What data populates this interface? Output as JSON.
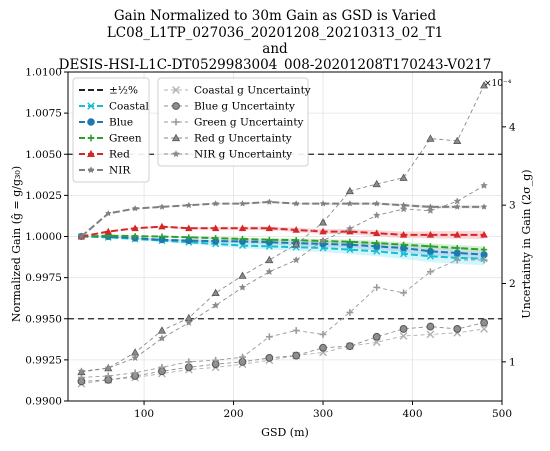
{
  "chart_data": {
    "type": "line",
    "title_lines": [
      "Gain Normalized to 30m Gain as GSD is Varied",
      "LC08_L1TP_027036_20201208_20210313_02_T1",
      "and",
      "DESIS-HSI-L1C-DT0529983004_008-20201208T170243-V0217"
    ],
    "xlabel": "GSD (m)",
    "ylabel_left": "Normalized Gain (ĝ = g/g₃₀)",
    "ylabel_right": "Uncertainty in Gain (2σ_g)",
    "right_axis_exponent": "×10⁻⁴",
    "xlim": [
      15,
      500
    ],
    "ylim_left": [
      0.99,
      1.01
    ],
    "ylim_right": [
      0.5,
      4.7
    ],
    "xticks": [
      100,
      200,
      300,
      400,
      500
    ],
    "yticks_left": [
      "0.9900",
      "0.9925",
      "0.9950",
      "0.9975",
      "1.0000",
      "1.0025",
      "1.0050",
      "1.0075",
      "1.0100"
    ],
    "yticks_right": [
      "1",
      "2",
      "3",
      "4"
    ],
    "grid": true,
    "tolerance": {
      "name": "±½%",
      "values": [
        0.995,
        1.005
      ],
      "color": "#222222"
    },
    "x": [
      30,
      60,
      90,
      120,
      150,
      180,
      210,
      240,
      270,
      300,
      330,
      360,
      390,
      420,
      450,
      480
    ],
    "series": [
      {
        "name": "Coastal",
        "color": "#17becf",
        "marker": "x",
        "axis": "left",
        "values": [
          1.0,
          0.99995,
          0.99985,
          0.99975,
          0.99965,
          0.99955,
          0.99945,
          0.9994,
          0.99935,
          0.9993,
          0.9992,
          0.9991,
          0.99895,
          0.9988,
          0.9987,
          0.99865
        ]
      },
      {
        "name": "Blue",
        "color": "#1f77b4",
        "marker": "circle",
        "axis": "left",
        "values": [
          1.0,
          1.0,
          0.9999,
          0.9998,
          0.99975,
          0.99972,
          0.9997,
          0.99965,
          0.9996,
          0.99955,
          0.9995,
          0.9994,
          0.9993,
          0.9991,
          0.999,
          0.9989
        ]
      },
      {
        "name": "Green",
        "color": "#2ca02c",
        "marker": "plus",
        "axis": "left",
        "values": [
          1.0,
          1.00005,
          1.00002,
          1.0,
          0.99995,
          0.9999,
          0.99985,
          0.9998,
          0.99978,
          0.99972,
          0.99968,
          0.9996,
          0.9995,
          0.9994,
          0.9993,
          0.9992
        ]
      },
      {
        "name": "Red",
        "color": "#d62728",
        "marker": "triangle",
        "axis": "left",
        "values": [
          1.0,
          1.0003,
          1.0005,
          1.0006,
          1.0005,
          1.0005,
          1.0005,
          1.0005,
          1.0004,
          1.0003,
          1.0003,
          1.0002,
          1.0001,
          1.0001,
          1.0001,
          1.0001
        ]
      },
      {
        "name": "NIR",
        "color": "#7f7f7f",
        "marker": "star",
        "axis": "left",
        "values": [
          1.0,
          1.0014,
          1.0017,
          1.0018,
          1.0019,
          1.002,
          1.002,
          1.0021,
          1.002,
          1.002,
          1.002,
          1.002,
          1.0019,
          1.0018,
          1.0018,
          1.0018
        ]
      },
      {
        "name": "Coastal g Uncertainty",
        "color": "#b0b0b0",
        "marker": "x",
        "axis": "right",
        "dashed": true,
        "values": [
          0.72,
          0.77,
          0.8,
          0.85,
          0.9,
          0.93,
          0.97,
          1.02,
          1.08,
          1.12,
          1.2,
          1.25,
          1.33,
          1.35,
          1.37,
          1.42
        ]
      },
      {
        "name": "Blue g Uncertainty",
        "color": "#8f8f8f",
        "marker": "circle",
        "axis": "right",
        "dashed": true,
        "values": [
          0.75,
          0.77,
          0.82,
          0.88,
          0.93,
          0.97,
          1.0,
          1.05,
          1.08,
          1.18,
          1.2,
          1.32,
          1.42,
          1.45,
          1.42,
          1.5
        ]
      },
      {
        "name": "Green g Uncertainty",
        "color": "#9a9a9a",
        "marker": "plus",
        "axis": "right",
        "dashed": true,
        "values": [
          0.8,
          0.82,
          0.86,
          0.93,
          1.0,
          1.02,
          1.06,
          1.32,
          1.4,
          1.35,
          1.63,
          1.95,
          1.88,
          2.15,
          2.3,
          2.3
        ]
      },
      {
        "name": "Red g Uncertainty",
        "color": "#8a8a8a",
        "marker": "triangle",
        "axis": "right",
        "dashed": true,
        "values": [
          0.87,
          0.92,
          1.12,
          1.4,
          1.56,
          1.88,
          2.1,
          2.3,
          2.5,
          2.78,
          3.18,
          3.27,
          3.35,
          3.85,
          3.82,
          4.53
        ]
      },
      {
        "name": "NIR g Uncertainty",
        "color": "#8a8a8a",
        "marker": "star",
        "axis": "right",
        "dashed": true,
        "values": [
          0.88,
          0.92,
          1.05,
          1.3,
          1.5,
          1.72,
          1.95,
          2.15,
          2.3,
          2.55,
          2.7,
          2.87,
          2.95,
          2.93,
          3.05,
          3.25
        ]
      }
    ],
    "legend_left": {
      "placement": "top-left",
      "entries": [
        "±½%",
        "Coastal",
        "Blue",
        "Green",
        "Red",
        "NIR"
      ]
    },
    "legend_right": {
      "placement": "top-center",
      "entries": [
        "Coastal g Uncertainty",
        "Blue g Uncertainty",
        "Green g Uncertainty",
        "Red g Uncertainty",
        "NIR g Uncertainty"
      ]
    }
  }
}
